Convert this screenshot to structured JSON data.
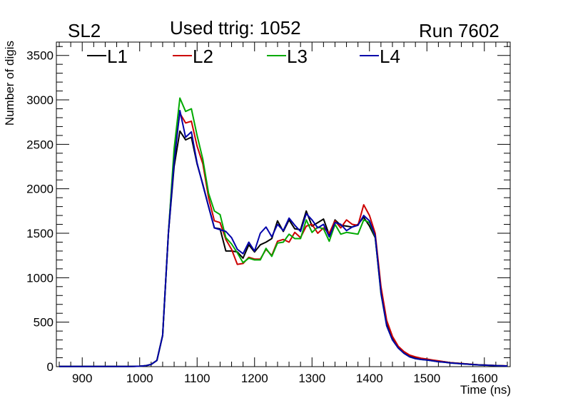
{
  "chart_data": {
    "type": "line",
    "title": "Used ttrig: 1052",
    "left_label": "SL2",
    "right_label": "Run 7602",
    "xlabel": "Time (ns)",
    "ylabel": "Number of digis",
    "xlim": [
      855,
      1645
    ],
    "ylim": [
      0,
      3650
    ],
    "x_major_ticks": [
      900,
      1000,
      1100,
      1200,
      1300,
      1400,
      1500,
      1600
    ],
    "y_major_ticks": [
      0,
      500,
      1000,
      1500,
      2000,
      2500,
      3000,
      3500
    ],
    "x_tick_labels": [
      "900",
      "1000",
      "1100",
      "1200",
      "1300",
      "1400",
      "1500",
      "1600"
    ],
    "y_tick_labels": [
      "0",
      "500",
      "1000",
      "1500",
      "2000",
      "2500",
      "3000",
      "3500"
    ],
    "x": [
      860,
      870,
      880,
      890,
      900,
      910,
      920,
      930,
      940,
      950,
      960,
      970,
      980,
      990,
      1000,
      1010,
      1020,
      1030,
      1040,
      1050,
      1060,
      1070,
      1080,
      1090,
      1100,
      1110,
      1120,
      1130,
      1140,
      1150,
      1160,
      1170,
      1180,
      1190,
      1200,
      1210,
      1220,
      1230,
      1240,
      1250,
      1260,
      1270,
      1280,
      1290,
      1300,
      1310,
      1320,
      1330,
      1340,
      1350,
      1360,
      1370,
      1380,
      1390,
      1400,
      1410,
      1420,
      1430,
      1440,
      1450,
      1460,
      1470,
      1480,
      1490,
      1500,
      1510,
      1520,
      1530,
      1540,
      1550,
      1560,
      1570,
      1580,
      1590,
      1600,
      1610,
      1620,
      1630,
      1640
    ],
    "series": [
      {
        "name": "L1",
        "color": "#000000",
        "values": [
          2,
          2,
          2,
          2,
          2,
          2,
          2,
          2,
          2,
          2,
          2,
          2,
          2,
          3,
          5,
          10,
          25,
          70,
          350,
          1500,
          2250,
          2650,
          2550,
          2580,
          2280,
          2050,
          1800,
          1560,
          1550,
          1300,
          1300,
          1290,
          1220,
          1370,
          1290,
          1370,
          1400,
          1440,
          1640,
          1520,
          1650,
          1550,
          1540,
          1750,
          1580,
          1620,
          1660,
          1480,
          1650,
          1590,
          1580,
          1570,
          1600,
          1680,
          1580,
          1450,
          850,
          480,
          320,
          220,
          160,
          120,
          100,
          85,
          80,
          70,
          60,
          55,
          45,
          40,
          35,
          30,
          25,
          20,
          18,
          15,
          12,
          10,
          8
        ]
      },
      {
        "name": "L2",
        "color": "#cc0000",
        "values": [
          2,
          2,
          2,
          2,
          2,
          2,
          2,
          2,
          2,
          2,
          2,
          2,
          2,
          3,
          5,
          10,
          25,
          70,
          350,
          1500,
          2400,
          2850,
          2740,
          2760,
          2480,
          2280,
          1900,
          1640,
          1620,
          1430,
          1320,
          1150,
          1160,
          1230,
          1210,
          1210,
          1320,
          1250,
          1410,
          1430,
          1400,
          1510,
          1450,
          1580,
          1600,
          1500,
          1560,
          1500,
          1640,
          1560,
          1650,
          1600,
          1590,
          1820,
          1700,
          1500,
          900,
          520,
          340,
          230,
          170,
          130,
          110,
          95,
          85,
          75,
          65,
          55,
          45,
          40,
          35,
          30,
          25,
          20,
          18,
          15,
          12,
          10,
          8
        ]
      },
      {
        "name": "L3",
        "color": "#00aa00",
        "values": [
          2,
          2,
          2,
          2,
          2,
          2,
          2,
          2,
          2,
          2,
          2,
          2,
          2,
          3,
          5,
          10,
          25,
          70,
          350,
          1500,
          2450,
          3020,
          2870,
          2900,
          2600,
          2330,
          1950,
          1750,
          1710,
          1450,
          1380,
          1280,
          1170,
          1220,
          1200,
          1200,
          1330,
          1240,
          1390,
          1400,
          1490,
          1440,
          1440,
          1650,
          1510,
          1570,
          1550,
          1410,
          1600,
          1490,
          1510,
          1500,
          1490,
          1650,
          1620,
          1460,
          820,
          460,
          300,
          210,
          150,
          110,
          90,
          80,
          75,
          65,
          55,
          50,
          42,
          37,
          32,
          28,
          23,
          19,
          17,
          14,
          11,
          9,
          7
        ]
      },
      {
        "name": "L4",
        "color": "#0000aa",
        "values": [
          2,
          2,
          2,
          2,
          2,
          2,
          2,
          2,
          2,
          2,
          2,
          2,
          2,
          3,
          5,
          10,
          25,
          70,
          350,
          1500,
          2300,
          2880,
          2580,
          2640,
          2290,
          2040,
          1800,
          1560,
          1540,
          1520,
          1450,
          1320,
          1270,
          1400,
          1300,
          1500,
          1570,
          1460,
          1600,
          1530,
          1670,
          1590,
          1520,
          1720,
          1650,
          1560,
          1600,
          1460,
          1620,
          1600,
          1530,
          1570,
          1590,
          1700,
          1640,
          1470,
          830,
          460,
          300,
          210,
          150,
          110,
          90,
          80,
          75,
          65,
          55,
          50,
          42,
          37,
          32,
          28,
          23,
          19,
          17,
          14,
          11,
          9,
          7
        ]
      }
    ],
    "legend": [
      "L1",
      "L2",
      "L3",
      "L4"
    ],
    "legend_position": "top-left"
  }
}
